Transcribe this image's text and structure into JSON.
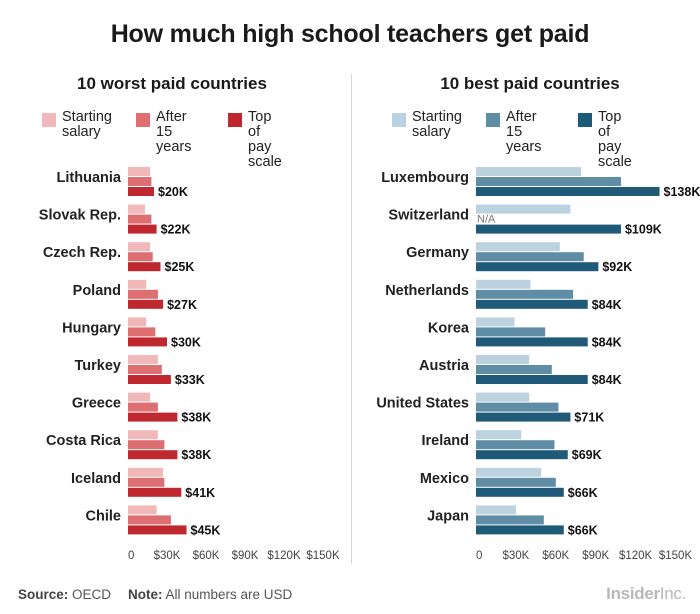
{
  "title": "How much high school teachers get paid",
  "footer": {
    "source_key": "Source:",
    "source_value": "OECD",
    "note_key": "Note:",
    "note_value": "All numbers are USD",
    "brand_bold": "Insider",
    "brand_light": "Inc."
  },
  "colors": {
    "worst": [
      "#f0b8b8",
      "#dd6e72",
      "#c0282f"
    ],
    "best": [
      "#bcd2de",
      "#5f8da6",
      "#1f5a78"
    ]
  },
  "chart_data": [
    {
      "type": "bar",
      "orientation": "horizontal",
      "title": "10 worst paid countries",
      "categories": [
        "Lithuania",
        "Slovak Rep.",
        "Czech Rep.",
        "Poland",
        "Hungary",
        "Turkey",
        "Greece",
        "Costa Rica",
        "Iceland",
        "Chile"
      ],
      "series": [
        {
          "name": "Starting salary",
          "values": [
            17,
            13,
            17,
            14,
            14,
            23,
            17,
            23,
            27,
            22
          ]
        },
        {
          "name": "After 15 years",
          "values": [
            18,
            18,
            19,
            23,
            21,
            26,
            23,
            28,
            28,
            33
          ]
        },
        {
          "name": "Top of pay scale",
          "values": [
            20,
            22,
            25,
            27,
            30,
            33,
            38,
            38,
            41,
            45
          ]
        }
      ],
      "value_labels": [
        "$20K",
        "$22K",
        "$25K",
        "$27K",
        "$30K",
        "$33K",
        "$38K",
        "$38K",
        "$41K",
        "$45K"
      ],
      "xlim": [
        0,
        150
      ],
      "xticks": [
        0,
        30,
        60,
        90,
        120,
        150
      ],
      "xtick_labels": [
        "0",
        "$30K",
        "$60K",
        "$90K",
        "$120K",
        "$150K"
      ]
    },
    {
      "type": "bar",
      "orientation": "horizontal",
      "title": "10 best paid countries",
      "categories": [
        "Luxembourg",
        "Switzerland",
        "Germany",
        "Netherlands",
        "Korea",
        "Austria",
        "United States",
        "Ireland",
        "Mexico",
        "Japan"
      ],
      "series": [
        {
          "name": "Starting salary",
          "values": [
            79,
            71,
            63,
            41,
            29,
            40,
            40,
            34,
            49,
            30
          ]
        },
        {
          "name": "After 15 years",
          "values": [
            109,
            null,
            81,
            73,
            52,
            57,
            62,
            59,
            60,
            51
          ]
        },
        {
          "name": "Top of pay scale",
          "values": [
            138,
            109,
            92,
            84,
            84,
            84,
            71,
            69,
            66,
            66
          ]
        }
      ],
      "value_labels": [
        "$138K",
        "$109K",
        "$92K",
        "$84K",
        "$84K",
        "$84K",
        "$71K",
        "$69K",
        "$66K",
        "$66K"
      ],
      "missing_label": "N/A",
      "xlim": [
        0,
        150
      ],
      "xticks": [
        0,
        30,
        60,
        90,
        120,
        150
      ],
      "xtick_labels": [
        "0",
        "$30K",
        "$60K",
        "$90K",
        "$120K",
        "$150K"
      ]
    }
  ],
  "legend_labels": [
    "Starting\nsalary",
    "After 15\nyears",
    "Top of\npay scale"
  ]
}
